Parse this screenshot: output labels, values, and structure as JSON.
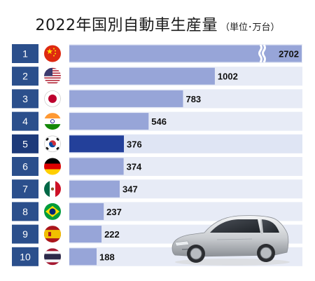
{
  "header": {
    "title": "2022年国別自動車生産量",
    "unit": "（単位･万台）"
  },
  "colors": {
    "rank_box": "#2b4f8c",
    "rank_box_highlight": "#1d3a7a",
    "bar": "#97a5d8",
    "bar_highlight": "#23409a",
    "row_bg": "#e7ebf6",
    "row_bg_highlight": "#dfe5f4",
    "page_bg": "#ffffff"
  },
  "chart_data": {
    "type": "bar",
    "orientation": "horizontal",
    "title": "2022年国別自動車生産量",
    "unit": "万台",
    "highlight_rank": 5,
    "axis_break_on_rank": 1,
    "ranks": [
      "1",
      "2",
      "3",
      "4",
      "5",
      "6",
      "7",
      "8",
      "9",
      "10"
    ],
    "flags": [
      "china-flag-icon",
      "usa-flag-icon",
      "japan-flag-icon",
      "india-flag-icon",
      "korea-flag-icon",
      "germany-flag-icon",
      "mexico-flag-icon",
      "brazil-flag-icon",
      "spain-flag-icon",
      "thailand-flag-icon"
    ],
    "values": [
      2702,
      1002,
      783,
      546,
      376,
      374,
      347,
      237,
      222,
      188
    ],
    "labels": [
      "2702",
      "1002",
      "783",
      "546",
      "376",
      "374",
      "347",
      "237",
      "222",
      "188"
    ]
  }
}
